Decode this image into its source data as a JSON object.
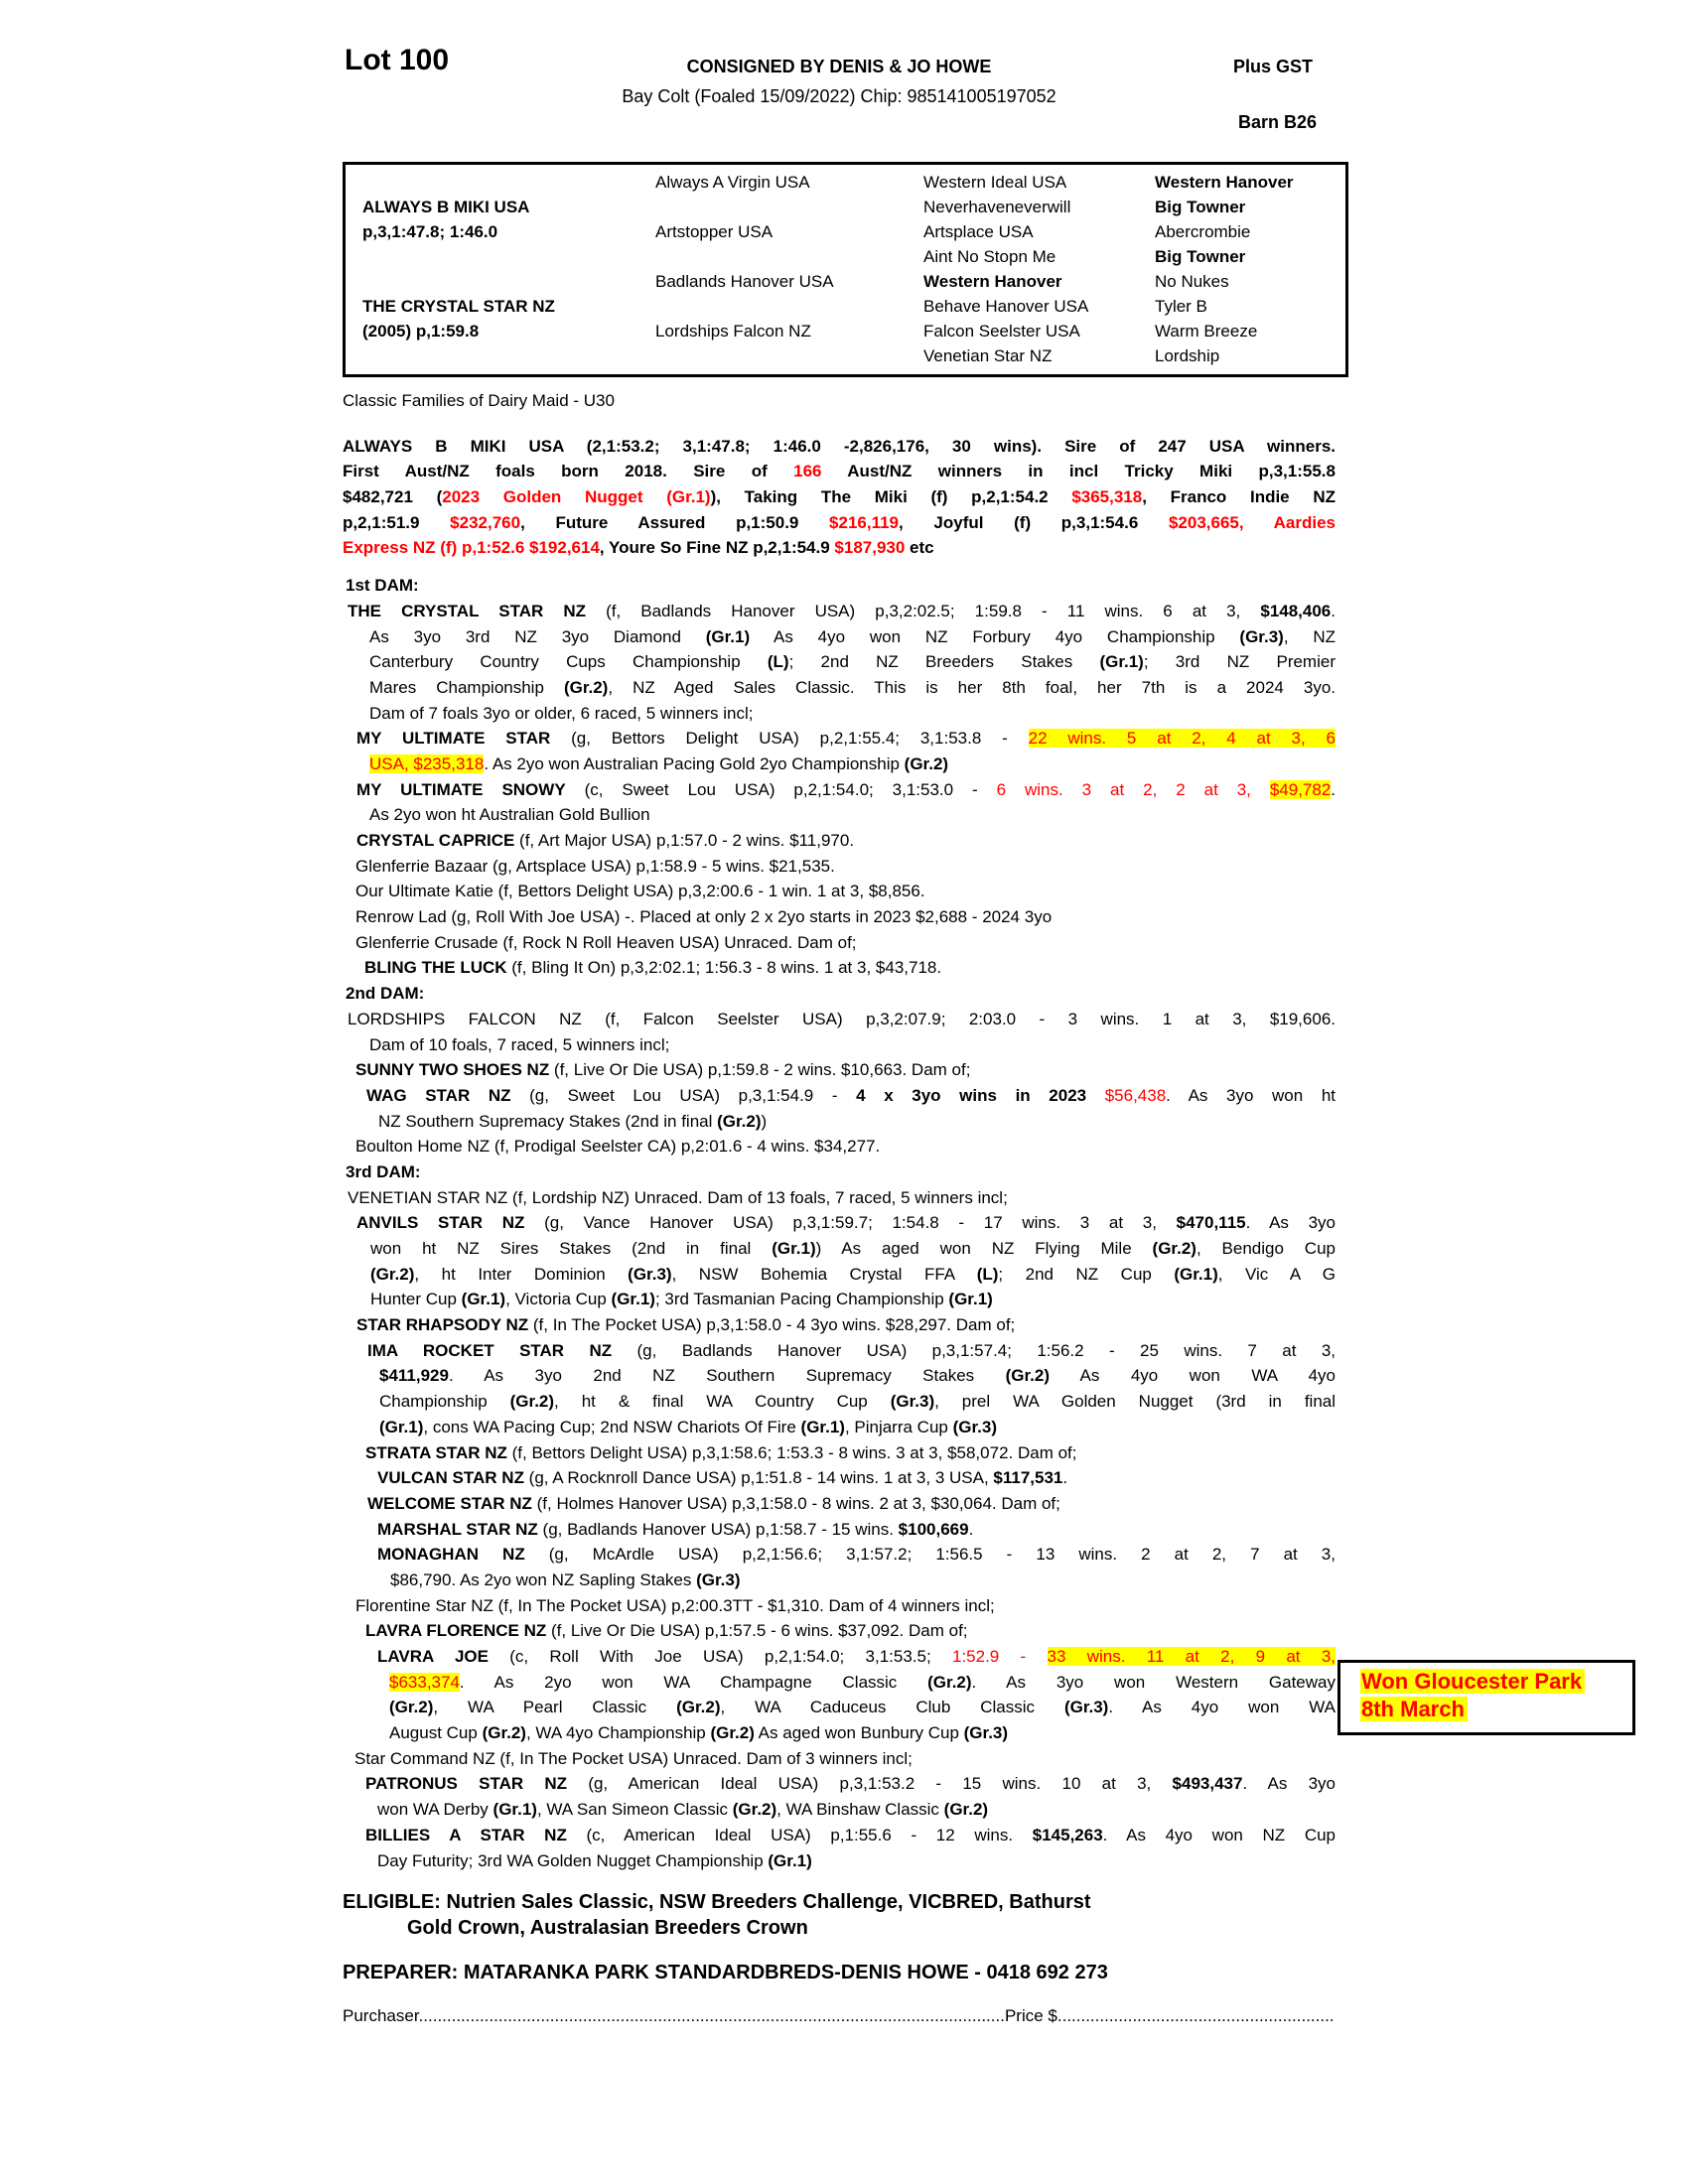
{
  "colors": {
    "accent_red": "#ff0000",
    "highlight_yellow": "#ffff00",
    "ink": "#000000",
    "paper": "#ffffff"
  },
  "header": {
    "lot": "Lot 100",
    "consigned": "CONSIGNED BY DENIS & JO HOWE",
    "foaled": "Bay Colt (Foaled  15/09/2022) Chip: 985141005197052",
    "plus_gst": "Plus GST",
    "barn": "Barn B26"
  },
  "pedigree": {
    "columns": [
      {
        "rows": [
          "",
          "ALWAYS B MIKI USA",
          "p,3,1:47.8; 1:46.0",
          "",
          "",
          "THE CRYSTAL STAR NZ",
          "(2005) p,1:59.8",
          ""
        ],
        "bold": [
          0,
          1,
          1,
          0,
          0,
          1,
          1,
          0
        ]
      },
      {
        "rows": [
          "Always A Virgin USA",
          "",
          "Artstopper USA",
          "",
          "Badlands Hanover USA",
          "",
          "Lordships Falcon NZ",
          ""
        ],
        "bold": [
          0,
          0,
          0,
          0,
          0,
          0,
          0,
          0
        ]
      },
      {
        "rows": [
          "Western Ideal USA",
          "Neverhaveneverwill",
          "Artsplace USA",
          "Aint No Stopn Me",
          "Western Hanover",
          "Behave Hanover USA",
          "Falcon Seelster USA",
          "Venetian Star NZ"
        ],
        "bold": [
          0,
          0,
          0,
          0,
          1,
          0,
          0,
          0
        ]
      },
      {
        "rows": [
          "Western Hanover",
          "Big Towner",
          "Abercrombie",
          "Big Towner",
          "No Nukes",
          "Tyler B",
          "Warm Breeze",
          "Lordship"
        ],
        "bold": [
          1,
          1,
          0,
          1,
          0,
          0,
          0,
          0
        ]
      }
    ]
  },
  "body": {
    "lines": [
      {
        "i": 0,
        "s": [
          "Classic Families of Dairy Maid - U30"
        ]
      },
      {
        "i": 0,
        "mt": 20,
        "j": 1,
        "s": [
          [
            "ALWAYS B MIKI USA (2,1:53.2; 3,1:47.8; 1:46.0 -2,826,176, 30 wins). Sire of 247 USA winners.",
            "b"
          ]
        ]
      },
      {
        "i": 0,
        "j": 1,
        "s": [
          [
            "First Aust/NZ foals born 2018. Sire of ",
            "b"
          ],
          [
            "166",
            "br"
          ],
          [
            " Aust/NZ winners in incl Tricky Miki p,3,1:55.8",
            "b"
          ]
        ]
      },
      {
        "i": 0,
        "j": 1,
        "s": [
          [
            "$482,721 (",
            "b"
          ],
          [
            "2023 Golden Nugget (Gr.1)",
            "br"
          ],
          [
            "), Taking The Miki (f) p,2,1:54.2 ",
            "b"
          ],
          [
            "$365,318",
            "br"
          ],
          [
            ", Franco Indie NZ",
            "b"
          ]
        ]
      },
      {
        "i": 0,
        "j": 1,
        "s": [
          [
            "p,2,1:51.9 ",
            "b"
          ],
          [
            "$232,760",
            "br"
          ],
          [
            ", Future Assured p,1:50.9 ",
            "b"
          ],
          [
            "$216,119",
            "br"
          ],
          [
            ", Joyful (f) p,3,1:54.6 ",
            "b"
          ],
          [
            "$203,665, Aardies",
            "br"
          ]
        ]
      },
      {
        "i": 0,
        "s": [
          [
            "Express NZ (f) p,1:52.6 $192,614",
            "br"
          ],
          [
            ", Youre So Fine NZ p,2,1:54.9 ",
            "b"
          ],
          [
            "$187,930",
            "br"
          ],
          [
            " etc",
            "b"
          ]
        ]
      },
      {
        "i": 3,
        "mt": 12,
        "s": [
          [
            "1st DAM:",
            "b"
          ]
        ]
      },
      {
        "i": 5,
        "j": 1,
        "s": [
          [
            "THE CRYSTAL STAR NZ",
            "b"
          ],
          " (f, Badlands Hanover USA) p,3,2:02.5; 1:59.8 - 11 wins. 6 at 3, ",
          [
            "$148,406",
            "b"
          ],
          "."
        ]
      },
      {
        "i": 27,
        "j": 1,
        "s": [
          "As 3yo 3rd NZ 3yo Diamond ",
          [
            "(Gr.1)",
            "b"
          ],
          " As 4yo won NZ Forbury 4yo Championship ",
          [
            "(Gr.3)",
            "b"
          ],
          ", NZ"
        ]
      },
      {
        "i": 27,
        "j": 1,
        "s": [
          "Canterbury Country Cups Championship ",
          [
            "(L)",
            "b"
          ],
          "; 2nd NZ Breeders Stakes ",
          [
            "(Gr.1)",
            "b"
          ],
          "; 3rd NZ Premier"
        ]
      },
      {
        "i": 27,
        "j": 1,
        "s": [
          "Mares Championship ",
          [
            "(Gr.2)",
            "b"
          ],
          ", NZ Aged Sales Classic. This is her 8th foal, her 7th is a 2024 3yo."
        ]
      },
      {
        "i": 27,
        "s": [
          "Dam of 7 foals 3yo or older, 6 raced, 5 winners incl;"
        ]
      },
      {
        "i": 14,
        "j": 1,
        "s": [
          [
            "MY ULTIMATE STAR",
            "b"
          ],
          " (g, Bettors Delight USA) p,2,1:55.4; 3,1:53.8 - ",
          [
            "22 wins. 5 at 2, 4 at 3, 6",
            "rh"
          ]
        ]
      },
      {
        "i": 27,
        "s": [
          [
            "USA, $235,318",
            "rh"
          ],
          ". As 2yo won Australian Pacing Gold 2yo Championship ",
          [
            "(Gr.2)",
            "b"
          ]
        ]
      },
      {
        "i": 14,
        "j": 1,
        "s": [
          [
            "MY ULTIMATE SNOWY",
            "b"
          ],
          " (c, Sweet Lou USA) p,2,1:54.0; 3,1:53.0 - ",
          [
            "6 wins. 3 at 2, 2 at 3, ",
            "r"
          ],
          [
            "$49,782",
            "rh"
          ],
          "."
        ]
      },
      {
        "i": 27,
        "s": [
          "As 2yo won ht Australian Gold Bullion"
        ]
      },
      {
        "i": 14,
        "s": [
          [
            "CRYSTAL CAPRICE",
            "b"
          ],
          " (f, Art Major USA) p,1:57.0 - 2 wins. $11,970."
        ]
      },
      {
        "i": 13,
        "s": [
          "Glenferrie Bazaar (g, Artsplace USA) p,1:58.9 - 5 wins. $21,535."
        ]
      },
      {
        "i": 13,
        "s": [
          "Our Ultimate Katie (f, Bettors Delight USA) p,3,2:00.6 - 1 win. 1 at 3, $8,856."
        ]
      },
      {
        "i": 13,
        "s": [
          "Renrow Lad (g, Roll With Joe USA) -. Placed at only 2 x 2yo starts in 2023 $2,688 - 2024 3yo"
        ]
      },
      {
        "i": 13,
        "s": [
          "Glenferrie Crusade (f, Rock N Roll Heaven USA) Unraced. Dam of;"
        ]
      },
      {
        "i": 22,
        "s": [
          [
            "BLING THE LUCK",
            "b"
          ],
          " (f, Bling It On) p,3,2:02.1; 1:56.3 - 8 wins. 1 at 3, $43,718."
        ]
      },
      {
        "i": 3,
        "s": [
          [
            "2nd DAM:",
            "b"
          ]
        ]
      },
      {
        "i": 5,
        "j": 1,
        "s": [
          "LORDSHIPS FALCON NZ (f, Falcon Seelster USA) p,3,2:07.9; 2:03.0 - 3 wins. 1 at 3, $19,606."
        ]
      },
      {
        "i": 27,
        "s": [
          "Dam of 10 foals, 7 raced, 5 winners incl;"
        ]
      },
      {
        "i": 13,
        "s": [
          [
            "SUNNY TWO SHOES NZ",
            "b"
          ],
          " (f, Live Or Die USA) p,1:59.8 - 2 wins. $10,663. Dam of;"
        ]
      },
      {
        "i": 24,
        "j": 1,
        "s": [
          [
            "WAG STAR NZ",
            "b"
          ],
          " (g, Sweet Lou USA) p,3,1:54.9 - ",
          [
            "4 x 3yo wins in 2023",
            "b"
          ],
          " ",
          [
            "$56,438",
            "r"
          ],
          ". As 3yo won ht"
        ]
      },
      {
        "i": 36,
        "s": [
          "NZ Southern Supremacy Stakes (2nd in final ",
          [
            "(Gr.2)",
            "b"
          ],
          ")"
        ]
      },
      {
        "i": 13,
        "s": [
          "Boulton Home NZ (f, Prodigal Seelster CA) p,2:01.6 - 4 wins. $34,277."
        ]
      },
      {
        "i": 3,
        "s": [
          [
            "3rd DAM:",
            "b"
          ]
        ]
      },
      {
        "i": 5,
        "s": [
          "VENETIAN STAR NZ (f, Lordship NZ) Unraced. Dam of 13 foals, 7 raced, 5 winners incl;"
        ]
      },
      {
        "i": 14,
        "j": 1,
        "s": [
          [
            "ANVILS STAR NZ",
            "b"
          ],
          " (g, Vance Hanover USA) p,3,1:59.7; 1:54.8 - 17 wins. 3 at 3, ",
          [
            "$470,115",
            "b"
          ],
          ". As 3yo"
        ]
      },
      {
        "i": 28,
        "j": 1,
        "s": [
          "won ht NZ Sires Stakes (2nd in final ",
          [
            "(Gr.1)",
            "b"
          ],
          ") As aged won NZ Flying Mile ",
          [
            "(Gr.2)",
            "b"
          ],
          ", Bendigo Cup"
        ]
      },
      {
        "i": 28,
        "j": 1,
        "s": [
          [
            "(Gr.2)",
            "b"
          ],
          ", ht Inter Dominion ",
          [
            "(Gr.3)",
            "b"
          ],
          ", NSW Bohemia Crystal FFA ",
          [
            "(L)",
            "b"
          ],
          "; 2nd NZ Cup ",
          [
            "(Gr.1)",
            "b"
          ],
          ", Vic A G"
        ]
      },
      {
        "i": 28,
        "s": [
          "Hunter Cup ",
          [
            "(Gr.1)",
            "b"
          ],
          ", Victoria Cup ",
          [
            "(Gr.1)",
            "b"
          ],
          "; 3rd Tasmanian Pacing Championship ",
          [
            "(Gr.1)",
            "b"
          ]
        ]
      },
      {
        "i": 14,
        "s": [
          [
            "STAR RHAPSODY NZ",
            "b"
          ],
          " (f, In The Pocket USA) p,3,1:58.0 - 4 3yo wins. $28,297. Dam of;"
        ]
      },
      {
        "i": 25,
        "j": 1,
        "s": [
          [
            "IMA ROCKET STAR NZ",
            "b"
          ],
          " (g, Badlands Hanover USA) p,3,1:57.4; 1:56.2 - 25 wins. 7 at 3,"
        ]
      },
      {
        "i": 37,
        "j": 1,
        "s": [
          [
            "$411,929",
            "b"
          ],
          ". As 3yo 2nd NZ Southern Supremacy Stakes ",
          [
            "(Gr.2)",
            "b"
          ],
          " As 4yo won WA 4yo"
        ]
      },
      {
        "i": 37,
        "j": 1,
        "s": [
          "Championship ",
          [
            "(Gr.2)",
            "b"
          ],
          ", ht & final WA Country Cup ",
          [
            "(Gr.3)",
            "b"
          ],
          ", prel WA Golden Nugget (3rd in final"
        ]
      },
      {
        "i": 37,
        "s": [
          [
            "(Gr.1)",
            "b"
          ],
          ", cons WA Pacing Cup; 2nd NSW Chariots Of Fire ",
          [
            "(Gr.1)",
            "b"
          ],
          ", Pinjarra Cup ",
          [
            "(Gr.3)",
            "b"
          ]
        ]
      },
      {
        "i": 23,
        "s": [
          [
            "STRATA STAR NZ",
            "b"
          ],
          " (f, Bettors Delight USA) p,3,1:58.6; 1:53.3 - 8 wins. 3 at 3, $58,072. Dam of;"
        ]
      },
      {
        "i": 35,
        "s": [
          [
            "VULCAN STAR NZ",
            "b"
          ],
          " (g, A Rocknroll Dance USA) p,1:51.8 - 14 wins. 1 at 3, 3 USA, ",
          [
            "$117,531",
            "b"
          ],
          "."
        ]
      },
      {
        "i": 25,
        "s": [
          [
            "WELCOME STAR NZ",
            "b"
          ],
          " (f, Holmes Hanover USA) p,3,1:58.0 - 8 wins. 2 at 3, $30,064. Dam of;"
        ]
      },
      {
        "i": 35,
        "s": [
          [
            "MARSHAL STAR NZ",
            "b"
          ],
          " (g, Badlands Hanover USA) p,1:58.7 - 15 wins. ",
          [
            "$100,669",
            "b"
          ],
          "."
        ]
      },
      {
        "i": 35,
        "j": 1,
        "s": [
          [
            "MONAGHAN NZ",
            "b"
          ],
          " (g, McArdle USA) p,2,1:56.6; 3,1:57.2; 1:56.5 - 13 wins. 2 at 2, 7 at 3,"
        ]
      },
      {
        "i": 48,
        "s": [
          "$86,790. As 2yo won NZ Sapling Stakes ",
          [
            "(Gr.3)",
            "b"
          ]
        ]
      },
      {
        "i": 13,
        "s": [
          "Florentine Star NZ (f, In The Pocket USA) p,2:00.3TT - $1,310. Dam of 4 winners incl;"
        ]
      },
      {
        "i": 23,
        "s": [
          [
            "LAVRA FLORENCE NZ",
            "b"
          ],
          " (f, Live Or Die USA) p,1:57.5 - 6 wins. $37,092. Dam of;"
        ]
      },
      {
        "i": 35,
        "j": 1,
        "s": [
          [
            "LAVRA JOE",
            "b"
          ],
          " (c, Roll With Joe USA) p,2,1:54.0; 3,1:53.5; ",
          [
            "1:52.9 - ",
            "r"
          ],
          [
            "33 wins. 11 at 2, 9 at 3,",
            "rh"
          ]
        ]
      },
      {
        "i": 47,
        "j": 1,
        "s": [
          [
            "$633,374",
            "rh"
          ],
          ". As 2yo won WA Champagne Classic ",
          [
            "(Gr.2)",
            "b"
          ],
          ". As 3yo won Western Gateway"
        ]
      },
      {
        "i": 47,
        "j": 1,
        "s": [
          [
            "(Gr.2)",
            "b"
          ],
          ", WA Pearl Classic ",
          [
            "(Gr.2)",
            "b"
          ],
          ", WA Caduceus Club Classic ",
          [
            "(Gr.3)",
            "b"
          ],
          ". As 4yo won WA"
        ]
      },
      {
        "i": 47,
        "s": [
          "August Cup ",
          [
            "(Gr.2)",
            "b"
          ],
          ", WA 4yo Championship ",
          [
            "(Gr.2)",
            "b"
          ],
          " As aged won Bunbury Cup ",
          [
            "(Gr.3)",
            "b"
          ]
        ]
      },
      {
        "i": 12,
        "s": [
          "Star Command NZ (f, In The Pocket USA) Unraced. Dam of 3 winners incl;"
        ]
      },
      {
        "i": 23,
        "j": 1,
        "s": [
          [
            "PATRONUS STAR NZ",
            "b"
          ],
          " (g, American Ideal USA) p,3,1:53.2 - 15 wins. 10 at 3, ",
          [
            "$493,437",
            "b"
          ],
          ". As 3yo"
        ]
      },
      {
        "i": 35,
        "s": [
          "won WA Derby ",
          [
            "(Gr.1)",
            "b"
          ],
          ", WA San Simeon Classic ",
          [
            "(Gr.2)",
            "b"
          ],
          ", WA Binshaw Classic ",
          [
            "(Gr.2)",
            "b"
          ]
        ]
      },
      {
        "i": 23,
        "j": 1,
        "s": [
          [
            "BILLIES A STAR NZ",
            "b"
          ],
          " (c, American Ideal USA) p,1:55.6 - 12 wins. ",
          [
            "$145,263",
            "b"
          ],
          ". As 4yo won NZ Cup"
        ]
      },
      {
        "i": 35,
        "s": [
          "Day Futurity; 3rd WA Golden Nugget Championship ",
          [
            "(Gr.1)",
            "b"
          ]
        ]
      },
      {
        "i": 0,
        "mt": 17,
        "c": "big",
        "s": [
          "ELIGIBLE: Nutrien Sales Classic, NSW Breeders Challenge, VICBRED, Bathurst"
        ]
      },
      {
        "i": 65,
        "c": "big",
        "s": [
          "Gold Crown, Australasian Breeders Crown"
        ]
      },
      {
        "i": 0,
        "mt": 19,
        "c": "big",
        "s": [
          "PREPARER: MATARANKA PARK STANDARDBREDS-DENIS HOWE - 0418 692 273"
        ]
      },
      {
        "i": 0,
        "mt": 18,
        "s": [
          "Purchaser",
          ".............................................................................................................................",
          "Price $",
          "..........................................................."
        ]
      }
    ]
  },
  "note": {
    "lines": [
      "Won Gloucester Park",
      "8th March"
    ]
  }
}
